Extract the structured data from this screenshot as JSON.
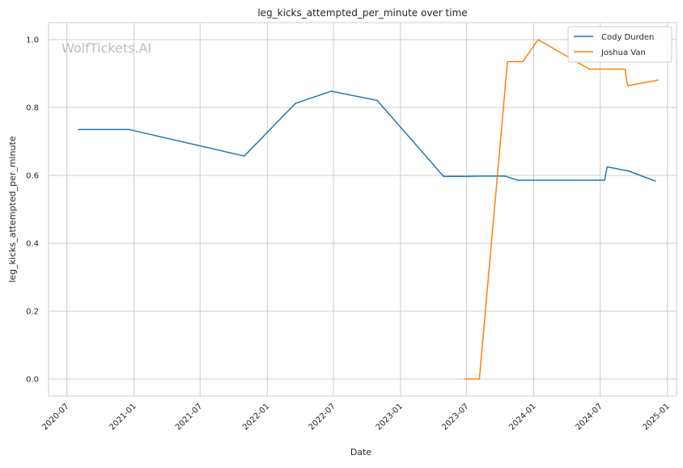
{
  "chart_data": {
    "type": "line",
    "title": "leg_kicks_attempted_per_minute over time",
    "xlabel": "Date",
    "ylabel": "leg_kicks_attempted_per_minute",
    "watermark": "WolfTickets.AI",
    "xlim": [
      "2020-05-12",
      "2025-01-26"
    ],
    "ylim": [
      -0.05,
      1.05
    ],
    "x_ticks": [
      "2020-07-01",
      "2021-01-01",
      "2021-07-01",
      "2022-01-01",
      "2022-07-01",
      "2023-01-01",
      "2023-07-01",
      "2024-01-01",
      "2024-07-01",
      "2025-01-01"
    ],
    "x_tick_labels": [
      "2020-07",
      "2021-01",
      "2021-07",
      "2022-01",
      "2022-07",
      "2023-01",
      "2023-07",
      "2024-01",
      "2024-07",
      "2025-01"
    ],
    "y_ticks": [
      0.0,
      0.2,
      0.4,
      0.6,
      0.8,
      1.0
    ],
    "y_tick_labels": [
      "0.0",
      "0.2",
      "0.4",
      "0.6",
      "0.8",
      "1.0"
    ],
    "grid": true,
    "legend_position": "top-right",
    "series": [
      {
        "name": "Cody Durden",
        "color": "#1f77b4",
        "points": [
          [
            "2020-08-01",
            0.735
          ],
          [
            "2020-12-19",
            0.735
          ],
          [
            "2021-10-30",
            0.657
          ],
          [
            "2022-03-19",
            0.812
          ],
          [
            "2022-06-25",
            0.848
          ],
          [
            "2022-10-29",
            0.821
          ],
          [
            "2023-04-29",
            0.597
          ],
          [
            "2023-06-24",
            0.597
          ],
          [
            "2023-08-05",
            0.598
          ],
          [
            "2023-10-14",
            0.598
          ],
          [
            "2023-11-18",
            0.586
          ],
          [
            "2024-07-13",
            0.586
          ],
          [
            "2024-07-20",
            0.625
          ],
          [
            "2024-09-07",
            0.615
          ],
          [
            "2024-09-14",
            0.614
          ],
          [
            "2024-11-30",
            0.583
          ]
        ]
      },
      {
        "name": "Joshua Van",
        "color": "#ff7f0e",
        "points": [
          [
            "2023-06-24",
            0.0
          ],
          [
            "2023-08-05",
            0.0
          ],
          [
            "2023-10-21",
            0.935
          ],
          [
            "2023-12-02",
            0.935
          ],
          [
            "2024-01-13",
            1.0
          ],
          [
            "2024-06-01",
            0.913
          ],
          [
            "2024-09-07",
            0.913
          ],
          [
            "2024-09-14",
            0.864
          ],
          [
            "2024-12-07",
            0.881
          ]
        ]
      }
    ]
  }
}
